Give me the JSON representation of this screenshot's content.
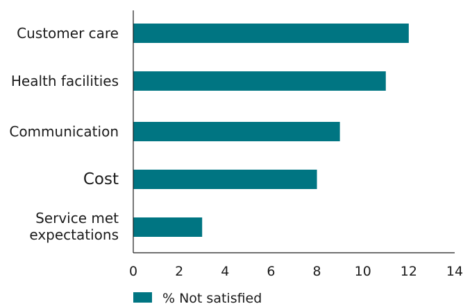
{
  "chart_data": {
    "type": "bar",
    "orientation": "horizontal",
    "categories": [
      "Customer care",
      "Health facilities",
      "Communication",
      "Cost",
      "Service met expectations"
    ],
    "category_lines": [
      [
        "Customer care"
      ],
      [
        "Health facilities"
      ],
      [
        "Communication"
      ],
      [
        "Cost"
      ],
      [
        "Service met",
        "expectations"
      ]
    ],
    "series": [
      {
        "name": "% Not satisfied",
        "values": [
          12,
          11,
          9,
          8,
          3
        ]
      }
    ],
    "xlim": [
      0,
      14
    ],
    "xticks": [
      "0",
      "2",
      "4",
      "6",
      "8",
      "10",
      "12",
      "14"
    ],
    "xlabel": "",
    "ylabel": "",
    "title": "",
    "grid": false,
    "legend": "bottom-left",
    "bar_color": "#007582"
  }
}
